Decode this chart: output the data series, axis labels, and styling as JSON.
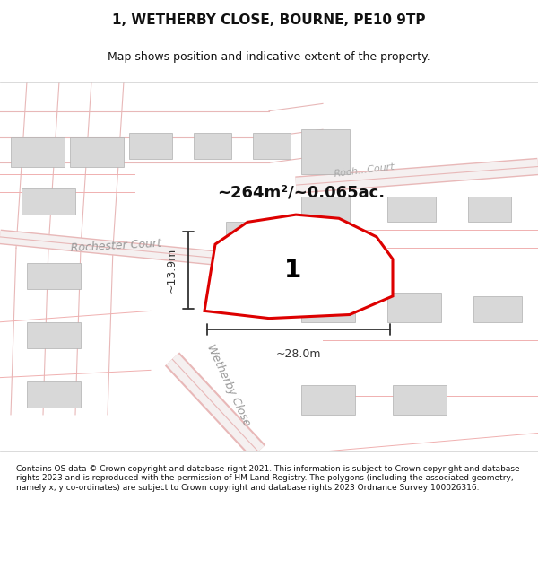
{
  "title_line1": "1, WETHERBY CLOSE, BOURNE, PE10 9TP",
  "title_line2": "Map shows position and indicative extent of the property.",
  "area_text": "~264m²/~0.065ac.",
  "label_number": "1",
  "dim_width": "~28.0m",
  "dim_height": "~13.9m",
  "street_label1": "Rochester Court",
  "street_label2": "Wetherby Close",
  "street_label3": "Roch... Court",
  "footer_text": "Contains OS data © Crown copyright and database right 2021. This information is subject to Crown copyright and database rights 2023 and is reproduced with the permission of HM Land Registry. The polygons (including the associated geometry, namely x, y co-ordinates) are subject to Crown copyright and database rights 2023 Ordnance Survey 100026316.",
  "bg_color": "#ffffff",
  "map_bg": "#f5f0f0",
  "road_color": "#e8d0d0",
  "building_fill": "#d8d8d8",
  "building_edge": "#b0b0b0",
  "plot_outline_color": "#dd0000",
  "plot_fill": "#ffffff",
  "dim_line_color": "#333333",
  "road_label_color": "#888888",
  "area_text_color": "#111111",
  "title_color": "#111111",
  "footer_color": "#111111"
}
